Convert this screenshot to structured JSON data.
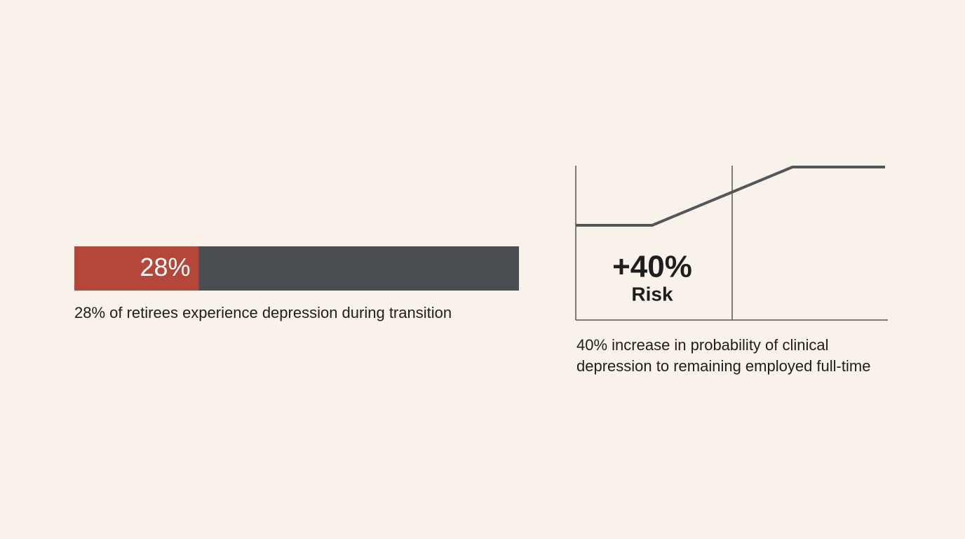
{
  "chart_data": [
    {
      "type": "bar",
      "values": [
        28
      ],
      "value_labels": [
        "28%"
      ],
      "xlim": [
        0,
        100
      ],
      "color": "#b5473a",
      "track_color": "#4a4d52",
      "caption": "28% of retirees experience depression during transition"
    },
    {
      "type": "line",
      "annotation": "+40%",
      "annotation_note": "Risk",
      "caption": [
        "40% increase in probability of clinical",
        "depression to remaining employed full-time"
      ]
    }
  ]
}
